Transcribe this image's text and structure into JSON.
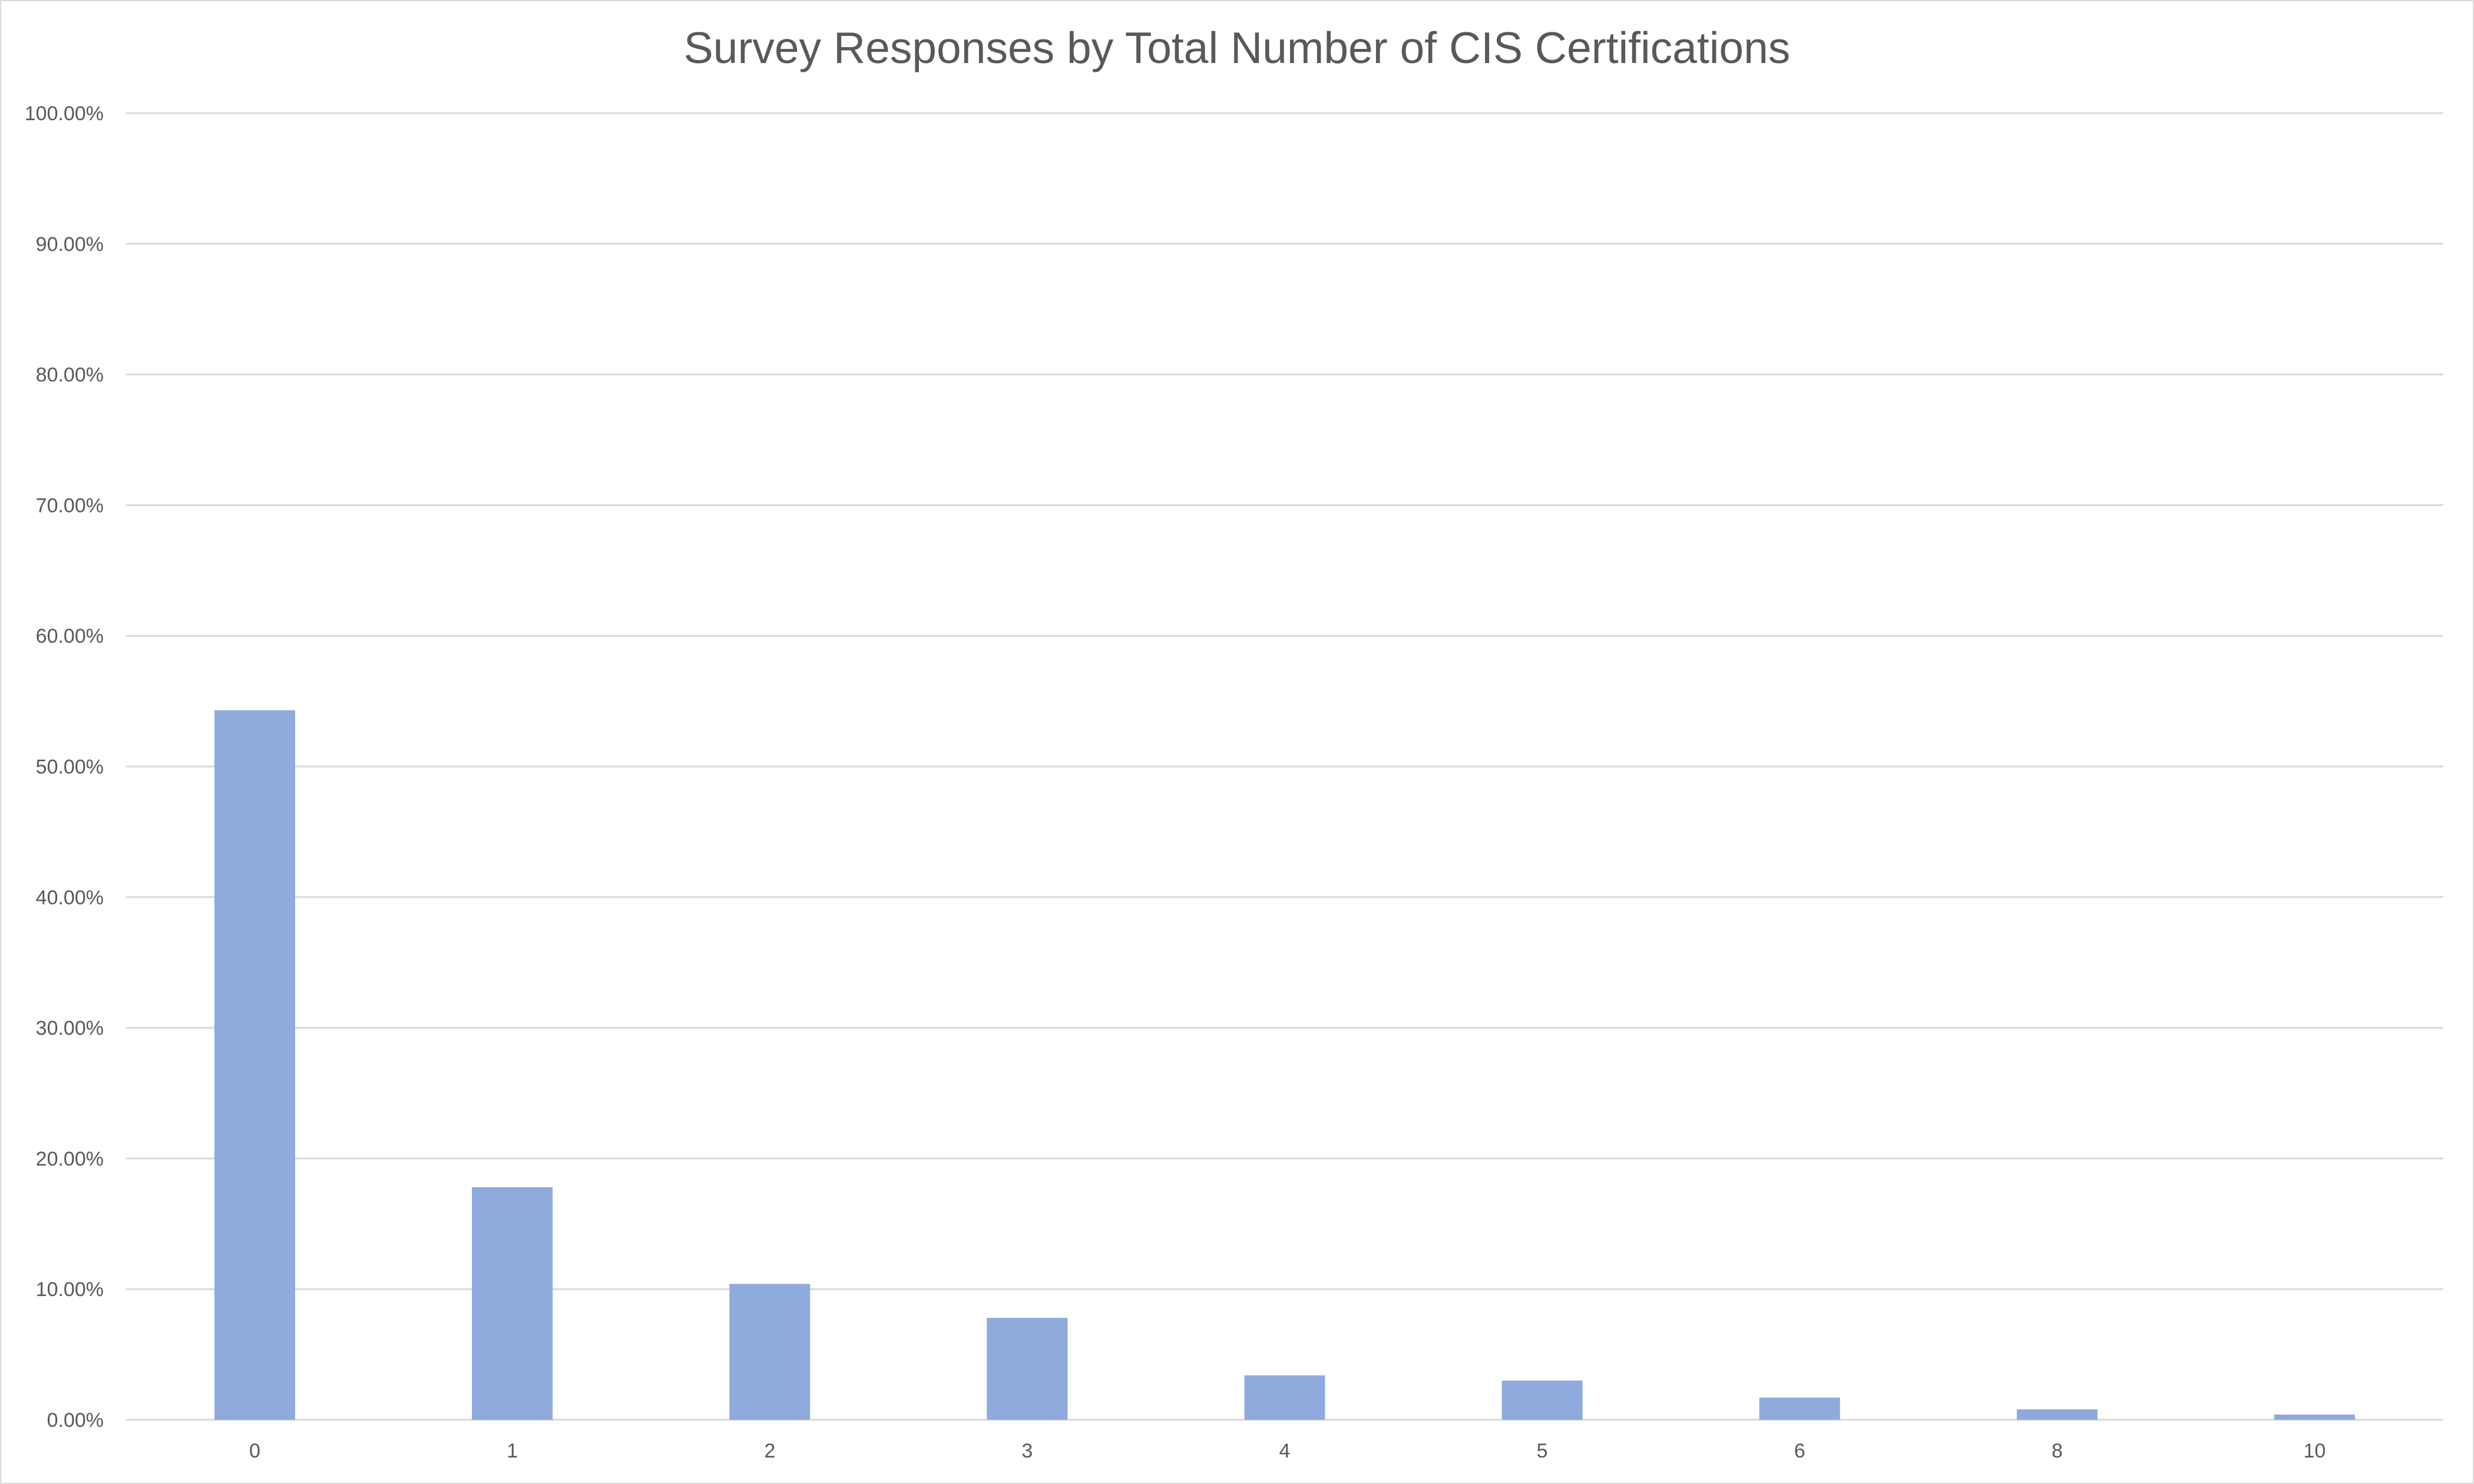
{
  "chart_data": {
    "type": "bar",
    "title": "Survey Responses by Total Number of CIS Certifications",
    "xlabel": "",
    "ylabel": "",
    "categories": [
      "0",
      "1",
      "2",
      "3",
      "4",
      "5",
      "6",
      "8",
      "10"
    ],
    "values": [
      54.3,
      17.8,
      10.4,
      7.8,
      3.4,
      3.0,
      1.7,
      0.8,
      0.4
    ],
    "ylim": [
      0,
      100
    ],
    "yticks": [
      "0.00%",
      "10.00%",
      "20.00%",
      "30.00%",
      "40.00%",
      "50.00%",
      "60.00%",
      "70.00%",
      "80.00%",
      "90.00%",
      "100.00%"
    ],
    "grid": true,
    "legend": "none",
    "bar_color": "#8faadc",
    "grid_color": "#d9d9d9"
  }
}
